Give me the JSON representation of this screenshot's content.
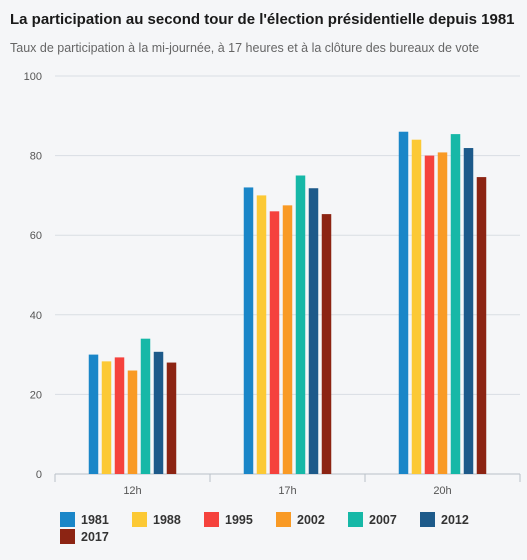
{
  "header": {
    "title": "La participation au second tour de l'élection présidentielle depuis 1981",
    "subtitle": "Taux de participation à la mi-journée, à 17 heures et à la clôture des bureaux de vote"
  },
  "chart_data": {
    "type": "bar",
    "categories": [
      "12h",
      "17h",
      "20h"
    ],
    "series": [
      {
        "name": "1981",
        "color": "#1a86c8",
        "values": [
          30,
          72,
          86
        ]
      },
      {
        "name": "1988",
        "color": "#fcc935",
        "values": [
          28.3,
          70,
          84
        ]
      },
      {
        "name": "1995",
        "color": "#f5423d",
        "values": [
          29.3,
          66,
          80
        ]
      },
      {
        "name": "2002",
        "color": "#f99a25",
        "values": [
          26,
          67.5,
          80.8
        ]
      },
      {
        "name": "2007",
        "color": "#16b8a7",
        "values": [
          34,
          75,
          85.4
        ]
      },
      {
        "name": "2012",
        "color": "#1d5a8a",
        "values": [
          30.7,
          71.8,
          81.9
        ]
      },
      {
        "name": "2017",
        "color": "#8c2413",
        "values": [
          28,
          65.3,
          74.6
        ]
      }
    ],
    "ylim": [
      0,
      100
    ],
    "yticks": [
      0,
      20,
      40,
      60,
      80,
      100
    ],
    "grid": true,
    "legend_position": "bottom",
    "title": "La participation au second tour de l'élection présidentielle depuis 1981",
    "xlabel": "",
    "ylabel": ""
  }
}
